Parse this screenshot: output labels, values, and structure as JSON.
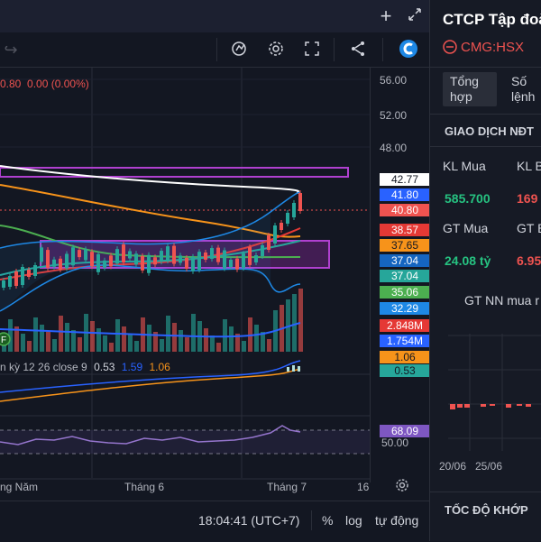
{
  "header": {
    "company_title": "CTCP Tập đoà",
    "ticker": "CMG:HSX",
    "tabs": [
      "Tổng hợp",
      "Số lệnh"
    ]
  },
  "legend": {
    "ohlc_fragment": "0.80  0.00 (0.00%)",
    "macd_label": "n kỳ 12 26 close 9",
    "macd_v1": "0.53",
    "macd_v2": "1.59",
    "macd_v3": "1.06"
  },
  "price_axis": {
    "ticks": [
      "56.00",
      "52.00",
      "48.00"
    ],
    "tags": [
      {
        "value": "42.77",
        "bg": "#ffffff",
        "fg": "#131722"
      },
      {
        "value": "41.80",
        "bg": "#2962ff",
        "fg": "#ffffff"
      },
      {
        "value": "40.80",
        "bg": "#ef5350",
        "fg": "#ffffff"
      },
      {
        "value": "38.57",
        "bg": "#e53935",
        "fg": "#ffffff"
      },
      {
        "value": "37.65",
        "bg": "#f7931a",
        "fg": "#131722"
      },
      {
        "value": "37.04",
        "bg": "#1565c0",
        "fg": "#ffffff"
      },
      {
        "value": "37.04",
        "bg": "#26a69a",
        "fg": "#ffffff"
      },
      {
        "value": "35.06",
        "bg": "#4caf50",
        "fg": "#ffffff"
      },
      {
        "value": "32.29",
        "bg": "#1e88e5",
        "fg": "#ffffff"
      }
    ]
  },
  "volume_axis": {
    "tags": [
      {
        "value": "2.848M",
        "bg": "#e53935",
        "fg": "#ffffff"
      },
      {
        "value": "1.754M",
        "bg": "#2962ff",
        "fg": "#ffffff"
      }
    ]
  },
  "macd_axis": {
    "tags": [
      {
        "value": "1.06",
        "bg": "#f7931a",
        "fg": "#131722"
      },
      {
        "value": "0.53",
        "bg": "#26a69a",
        "fg": "#131722"
      }
    ]
  },
  "rsi_axis": {
    "tags": [
      {
        "value": "68.09",
        "bg": "#7e57c2",
        "fg": "#ffffff"
      }
    ],
    "ticks": [
      "50.00"
    ]
  },
  "time_axis": {
    "labels": [
      "ng Năm",
      "Tháng 6",
      "Tháng 7",
      "16"
    ]
  },
  "bottom_bar": {
    "time": "18:04:41 (UTC+7)",
    "percent": "%",
    "log": "log",
    "auto": "tự động"
  },
  "right_panel": {
    "section_title": "GIAO DỊCH NĐT",
    "kl_mua_label": "KL Mua",
    "kl_ban_label": "KL B",
    "kl_mua_value": "585.700",
    "kl_ban_value": "169",
    "gt_mua_label": "GT Mua",
    "gt_ban_label": "GT B",
    "gt_mua_value": "24.08 tỷ",
    "gt_ban_value": "6.95",
    "chart_title": "GT NN mua r",
    "date_labels": [
      "20/06",
      "25/06"
    ],
    "bottom_title": "TỐC ĐỘ KHỚP"
  },
  "colors": {
    "up": "#26a69a",
    "down": "#ef5350",
    "accent": "#2962ff",
    "box": "#9c27b0"
  },
  "icons": [
    "plus-icon",
    "expand-icon",
    "redo-icon",
    "indicator-icon",
    "gear-icon",
    "fullscreen-icon",
    "share-icon",
    "brand-logo-icon",
    "settings-icon",
    "stock-icon"
  ]
}
